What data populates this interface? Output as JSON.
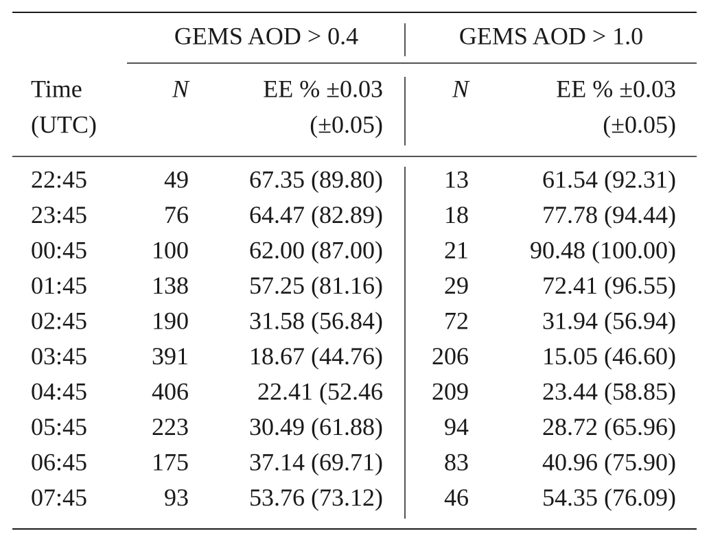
{
  "table": {
    "groups": [
      "GEMS AOD > 0.4",
      "GEMS AOD > 1.0"
    ],
    "columns": [
      [
        "Time",
        "(UTC)"
      ],
      [
        "N"
      ],
      [
        "EE % ±0.03",
        "(±0.05)"
      ],
      [
        "N"
      ],
      [
        "EE % ±0.03",
        "(±0.05)"
      ]
    ],
    "rows": [
      [
        "22:45",
        49,
        "67.35 (89.80)",
        13,
        "61.54 (92.31)"
      ],
      [
        "23:45",
        76,
        "64.47 (82.89)",
        18,
        "77.78 (94.44)"
      ],
      [
        "00:45",
        100,
        "62.00 (87.00)",
        21,
        "90.48 (100.00)"
      ],
      [
        "01:45",
        138,
        "57.25 (81.16)",
        29,
        "72.41 (96.55)"
      ],
      [
        "02:45",
        190,
        "31.58 (56.84)",
        72,
        "31.94 (56.94)"
      ],
      [
        "03:45",
        391,
        "18.67 (44.76)",
        206,
        "15.05 (46.60)"
      ],
      [
        "04:45",
        406,
        "22.41 (52.46",
        209,
        "23.44 (58.85)"
      ],
      [
        "05:45",
        223,
        "30.49 (61.88)",
        94,
        "28.72 (65.96)"
      ],
      [
        "06:45",
        175,
        "37.14 (69.71)",
        83,
        "40.96 (75.90)"
      ],
      [
        "07:45",
        93,
        "53.76 (73.12)",
        46,
        "54.35 (76.09)"
      ]
    ]
  }
}
